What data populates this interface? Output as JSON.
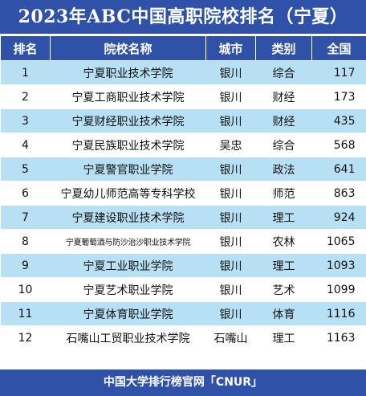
{
  "title": "2023年ABC中国高职院校排名（宁夏）",
  "header": {
    "rank": "排名",
    "school": "院校名称",
    "city": "城市",
    "category": "类别",
    "national": "全国"
  },
  "rows": [
    {
      "rank": "1",
      "school": "宁夏职业技术学院",
      "city": "银川",
      "category": "综合",
      "national": "117"
    },
    {
      "rank": "2",
      "school": "宁夏工商职业技术学院",
      "city": "银川",
      "category": "财经",
      "national": "173"
    },
    {
      "rank": "3",
      "school": "宁夏财经职业技术学院",
      "city": "银川",
      "category": "财经",
      "national": "435"
    },
    {
      "rank": "4",
      "school": "宁夏民族职业技术学院",
      "city": "吴忠",
      "category": "综合",
      "national": "568"
    },
    {
      "rank": "5",
      "school": "宁夏警官职业学院",
      "city": "银川",
      "category": "政法",
      "national": "641"
    },
    {
      "rank": "6",
      "school": "宁夏幼儿师范高等专科学校",
      "city": "银川",
      "category": "师范",
      "national": "863"
    },
    {
      "rank": "7",
      "school": "宁夏建设职业技术学院",
      "city": "银川",
      "category": "理工",
      "national": "924"
    },
    {
      "rank": "8",
      "school": "宁夏葡萄酒与防沙治沙职业技术学院",
      "city": "银川",
      "category": "农林",
      "national": "1065"
    },
    {
      "rank": "9",
      "school": "宁夏工业职业学院",
      "city": "银川",
      "category": "理工",
      "national": "1093"
    },
    {
      "rank": "10",
      "school": "宁夏艺术职业学院",
      "city": "银川",
      "category": "艺术",
      "national": "1099"
    },
    {
      "rank": "11",
      "school": "宁夏体育职业学院",
      "city": "银川",
      "category": "体育",
      "national": "1116"
    },
    {
      "rank": "12",
      "school": "石嘴山工贸职业技术学院",
      "city": "石嘴山",
      "category": "理工",
      "national": "1163"
    }
  ],
  "footer": "中国大学排行榜官网「CNUR」",
  "colors": {
    "header_bg": "#2f52a8",
    "stripe": "#b7e0f4",
    "header_text": "#ffffff"
  }
}
